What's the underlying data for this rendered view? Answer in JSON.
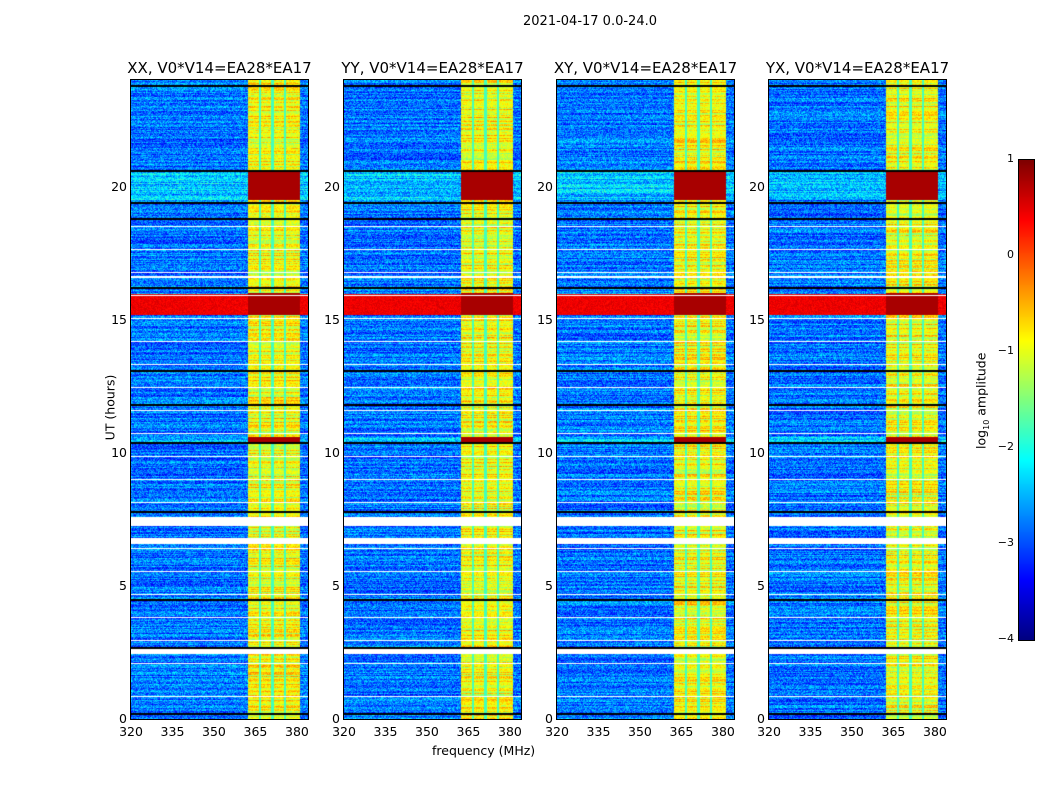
{
  "chart_data": {
    "type": "heatmap",
    "title": "2021-04-17 0.0-24.0",
    "xlabel": "frequency (MHz)",
    "ylabel": "UT (hours)",
    "xlim": [
      320,
      384
    ],
    "ylim": [
      0,
      24
    ],
    "xticks": [
      "320",
      "335",
      "350",
      "365",
      "380"
    ],
    "yticks": [
      "0",
      "5",
      "10",
      "15",
      "20"
    ],
    "xtick_values": [
      320,
      335,
      350,
      365,
      380
    ],
    "ytick_values": [
      0,
      5,
      10,
      15,
      20
    ],
    "panels": [
      {
        "title": "XX, V0*V14=EA28*EA17"
      },
      {
        "title": "YY, V0*V14=EA28*EA17"
      },
      {
        "title": "XY, V0*V14=EA28*EA17"
      },
      {
        "title": "YX, V0*V14=EA28*EA17"
      }
    ],
    "colorbar": {
      "label_main": "log",
      "label_sub": "10",
      "label_rest": " amplitude",
      "colormap": "jet",
      "range": [
        -4,
        1
      ],
      "ticks": [
        "1",
        "0",
        "−1",
        "−2",
        "−3",
        "−4"
      ],
      "tick_values": [
        1,
        0,
        -1,
        -2,
        -3,
        -4
      ]
    },
    "features": {
      "bright_band_mhz": [
        362,
        381
      ],
      "band_gaps_mhz": [
        366.5,
        371,
        375.5
      ],
      "background_log_amp": -2.8,
      "band_log_amp": -0.9,
      "strong_rfi_hours": [
        [
          15.2,
          16.0
        ],
        [
          19.5,
          20.6
        ],
        [
          10.4,
          10.6
        ]
      ],
      "flagged_hours": [
        [
          7.3,
          7.6
        ],
        [
          6.6,
          6.8
        ],
        [
          2.45,
          2.65
        ],
        [
          0.85,
          0.9
        ],
        [
          16.6,
          16.65
        ]
      ],
      "black_lines_hours": [
        23.8,
        20.6,
        19.4,
        18.8,
        16.2,
        13.1,
        11.8,
        10.4,
        7.8,
        4.5,
        2.7,
        0.2
      ]
    }
  }
}
